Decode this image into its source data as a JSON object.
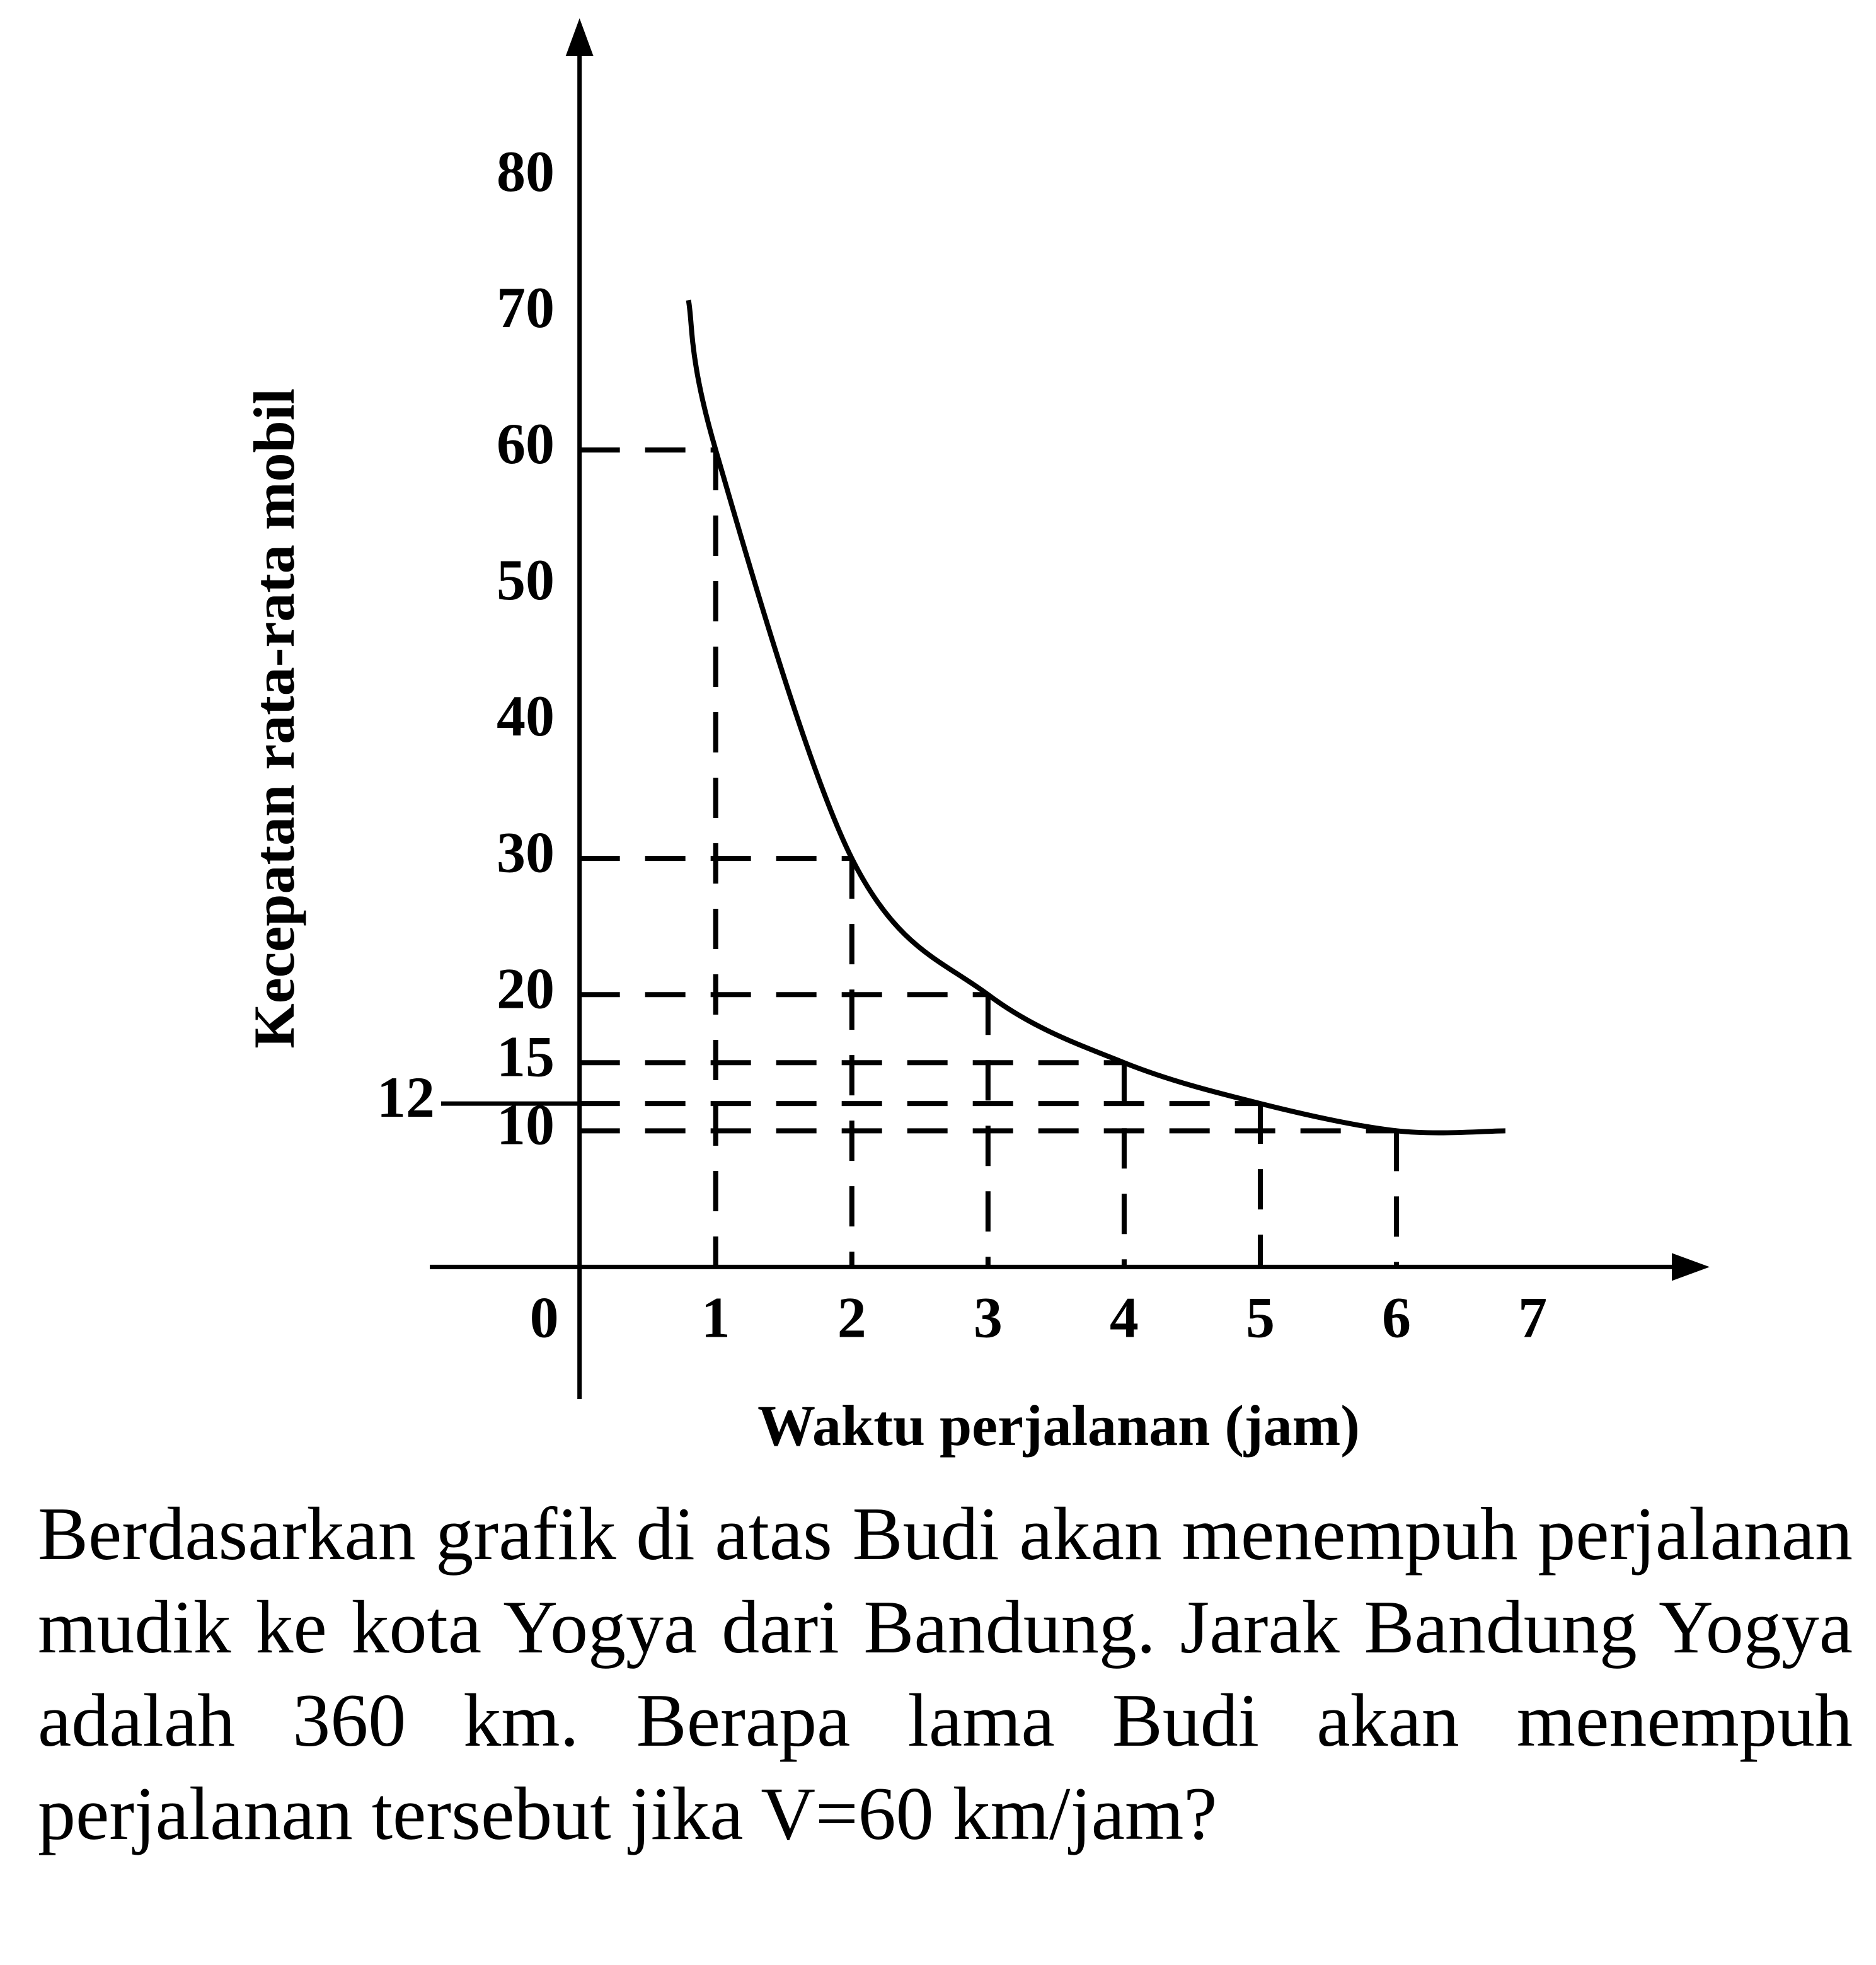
{
  "chart_data": {
    "type": "line",
    "x_label": "Waktu perjalanan (jam)",
    "y_label": "Kecepatan rata-rata mobil",
    "x": [
      0.8,
      1,
      2,
      3,
      4,
      5,
      6,
      6.8
    ],
    "values": [
      71,
      60,
      30,
      20,
      15,
      12,
      10,
      10
    ],
    "color": "#000000",
    "xlim": [
      -1.1,
      8.3
    ],
    "ylim": [
      -9.7,
      91.7
    ],
    "xticks": [
      0,
      1,
      2,
      3,
      4,
      5,
      6,
      7
    ],
    "yticks": [
      10,
      12,
      15,
      20,
      30,
      40,
      50,
      60,
      70,
      80
    ],
    "guides": true
  },
  "question": "Berdasarkan grafik di atas Budi akan menempuh perjalanan mudik ke kota Yogya dari Bandung. Jarak Bandung Yogya adalah 360 km. Berapa lama Budi akan menempuh perjalanan tersebut jika V=60 km/jam?"
}
